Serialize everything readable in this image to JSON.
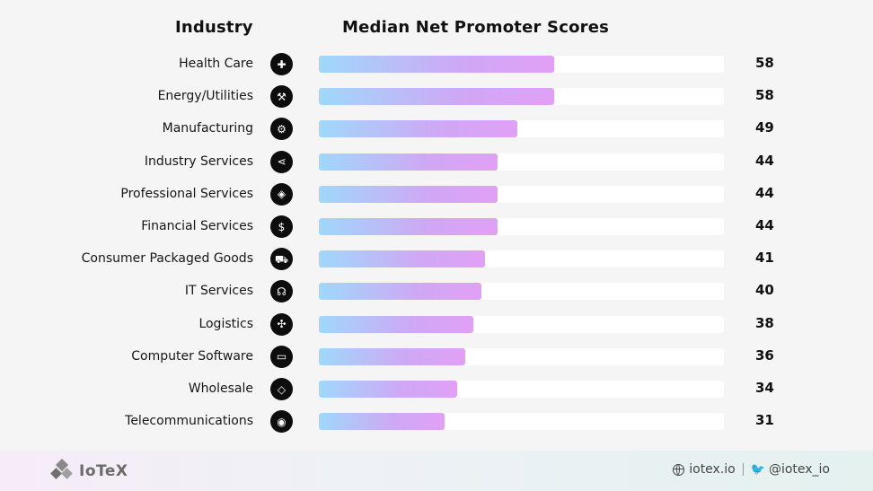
{
  "headers": {
    "industry": "Industry",
    "scores": "Median Net Promoter Scores"
  },
  "colors": {
    "bar_start": "#9fd8fb",
    "bar_end": "#e0a0f6",
    "track": "#ffffff",
    "icon_bg": "#0d0d0d"
  },
  "chart_data": {
    "type": "bar",
    "orientation": "horizontal",
    "title": "Median Net Promoter Scores",
    "xlabel": "",
    "ylabel": "Industry",
    "xlim": [
      0,
      100
    ],
    "categories": [
      "Health Care",
      "Energy/Utilities",
      "Manufacturing",
      "Industry Services",
      "Professional Services",
      "Financial Services",
      "Consumer Packaged Goods",
      "IT Services",
      "Logistics",
      "Computer Software",
      "Wholesale",
      "Telecommunications"
    ],
    "values": [
      58,
      58,
      49,
      44,
      44,
      44,
      41,
      40,
      38,
      36,
      34,
      31
    ],
    "icons": [
      "shield-plus-icon",
      "wrench-icon",
      "gear-icon",
      "share-icon",
      "handshake-icon",
      "dollar-cycle-icon",
      "cart-icon",
      "headset-icon",
      "puzzle-icon",
      "laptop-icon",
      "tag-icon",
      "broadcast-icon"
    ],
    "data_labels": true,
    "grid": false,
    "legend": "none"
  },
  "footer": {
    "brand": "IoTeX",
    "website": "iotex.io",
    "twitter": "@iotex_io"
  }
}
